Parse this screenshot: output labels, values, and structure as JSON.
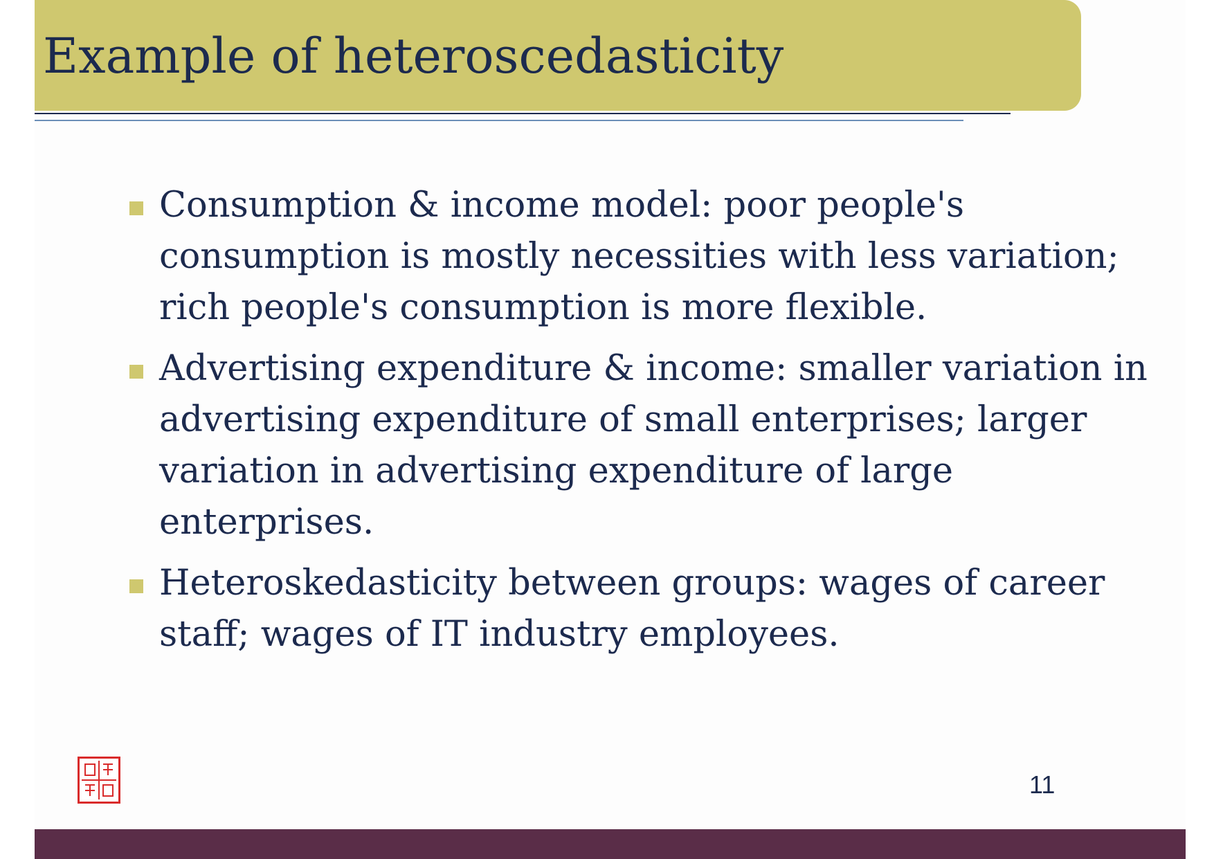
{
  "slide": {
    "title": "Example of heteroscedasticity",
    "bullets": [
      "Consumption & income model: poor people's consumption is mostly necessities with less variation; rich people's consumption is more flexible.",
      "Advertising expenditure & income: smaller variation in advertising expenditure of small enterprises; larger variation in advertising expenditure of large enterprises.",
      "Heteroskedasticity between groups: wages of career staff; wages of IT industry employees."
    ],
    "page_number": "11",
    "seal": {
      "icon": "red-seal-icon",
      "lettering": "南京審計"
    }
  },
  "colors": {
    "title_band": "#cfc86f",
    "title_text": "#1c2a4e",
    "bullet_marker": "#cfc86f",
    "footer_band": "#5a2d48",
    "seal": "#d92b2b",
    "rule_dark": "#1c2a4e",
    "rule_light": "#6b8fb8"
  }
}
